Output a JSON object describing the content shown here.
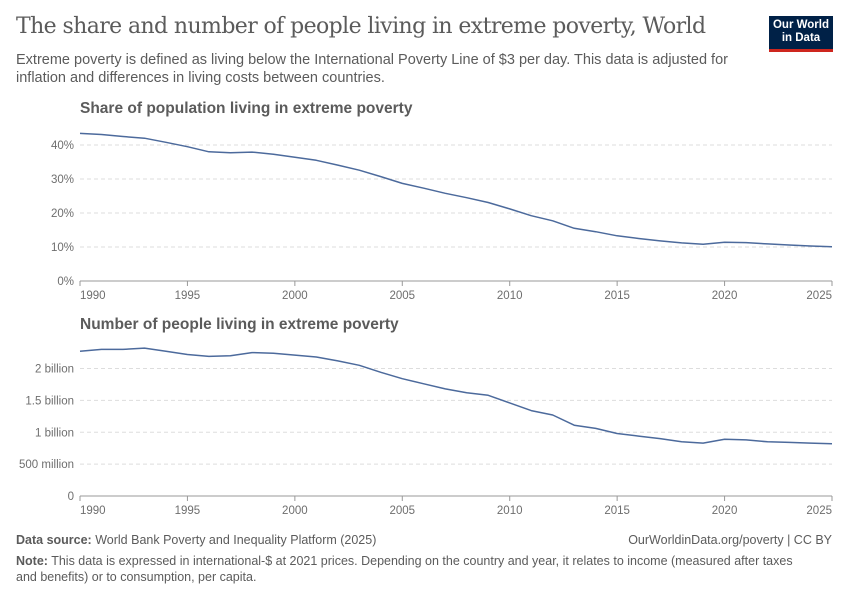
{
  "header": {
    "title": "The share and number of people living in extreme poverty, World",
    "subtitle": "Extreme poverty is defined as living below the International Poverty Line of $3 per day. This data is adjusted for inflation and differences in living costs between countries.",
    "logo_text": "Our World in Data"
  },
  "colors": {
    "line": "#4c6a9c",
    "grid": "#dddddd",
    "axis": "#999999",
    "text": "#5b5b5b",
    "logo_bg": "#002147",
    "logo_accent": "#ce261e"
  },
  "chart_data": [
    {
      "type": "line",
      "title": "Share of population living in extreme poverty",
      "x": [
        1990,
        1991,
        1992,
        1993,
        1994,
        1995,
        1996,
        1997,
        1998,
        1999,
        2000,
        2001,
        2002,
        2003,
        2004,
        2005,
        2006,
        2007,
        2008,
        2009,
        2010,
        2011,
        2012,
        2013,
        2014,
        2015,
        2016,
        2017,
        2018,
        2019,
        2020,
        2021,
        2022,
        2023,
        2024,
        2025
      ],
      "values": [
        43.4,
        43.1,
        42.5,
        42.0,
        40.8,
        39.5,
        38.0,
        37.7,
        37.9,
        37.3,
        36.4,
        35.5,
        34.1,
        32.6,
        30.7,
        28.7,
        27.3,
        25.8,
        24.5,
        23.1,
        21.2,
        19.2,
        17.7,
        15.5,
        14.5,
        13.3,
        12.5,
        11.8,
        11.2,
        10.8,
        11.4,
        11.3,
        10.9,
        10.6,
        10.3,
        10.1
      ],
      "xlim": [
        1990,
        2025
      ],
      "ylim": [
        0,
        45
      ],
      "y_ticks": [
        0,
        10,
        20,
        30,
        40
      ],
      "y_tick_labels": [
        "0%",
        "10%",
        "20%",
        "30%",
        "40%"
      ],
      "x_ticks": [
        1990,
        1995,
        2000,
        2005,
        2010,
        2015,
        2020,
        2025
      ],
      "x_tick_labels": [
        "1990",
        "1995",
        "2000",
        "2005",
        "2010",
        "2015",
        "2020",
        "2025"
      ],
      "grid": "horizontal dashed"
    },
    {
      "type": "line",
      "title": "Number of people living in extreme poverty",
      "x": [
        1990,
        1991,
        1992,
        1993,
        1994,
        1995,
        1996,
        1997,
        1998,
        1999,
        2000,
        2001,
        2002,
        2003,
        2004,
        2005,
        2006,
        2007,
        2008,
        2009,
        2010,
        2011,
        2012,
        2013,
        2014,
        2015,
        2016,
        2017,
        2018,
        2019,
        2020,
        2021,
        2022,
        2023,
        2024,
        2025
      ],
      "values": [
        2270000000.0,
        2300000000.0,
        2300000000.0,
        2320000000.0,
        2270000000.0,
        2220000000.0,
        2190000000.0,
        2200000000.0,
        2250000000.0,
        2240000000.0,
        2210000000.0,
        2180000000.0,
        2120000000.0,
        2050000000.0,
        1940000000.0,
        1840000000.0,
        1760000000.0,
        1680000000.0,
        1620000000.0,
        1580000000.0,
        1460000000.0,
        1340000000.0,
        1270000000.0,
        1110000000.0,
        1060000000.0,
        980000000.0,
        940000000.0,
        900000000.0,
        850000000.0,
        830000000.0,
        890000000.0,
        880000000.0,
        850000000.0,
        840000000.0,
        830000000.0,
        820000000.0
      ],
      "xlim": [
        1990,
        2025
      ],
      "ylim": [
        0,
        2400000000.0
      ],
      "y_ticks": [
        0,
        500000000.0,
        1000000000.0,
        1500000000.0,
        2000000000.0
      ],
      "y_tick_labels": [
        "0",
        "500 million",
        "1 billion",
        "1.5 billion",
        "2 billion"
      ],
      "x_ticks": [
        1990,
        1995,
        2000,
        2005,
        2010,
        2015,
        2020,
        2025
      ],
      "x_tick_labels": [
        "1990",
        "1995",
        "2000",
        "2005",
        "2010",
        "2015",
        "2020",
        "2025"
      ],
      "grid": "horizontal dashed"
    }
  ],
  "footer": {
    "source_label": "Data source:",
    "source_text": "World Bank Poverty and Inequality Platform (2025)",
    "url_license": "OurWorldinData.org/poverty | CC BY",
    "note_label": "Note:",
    "note_text": "This data is expressed in international-$ at 2021 prices. Depending on the country and year, it relates to income (measured after taxes and benefits) or to consumption, per capita."
  }
}
